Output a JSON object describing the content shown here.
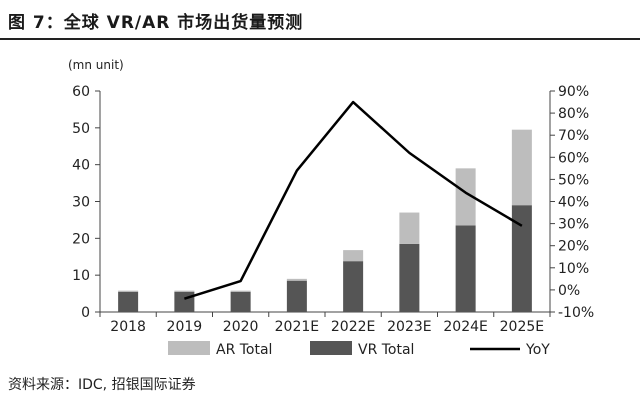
{
  "figure": {
    "title": "图 7：全球 VR/AR 市场出货量预测",
    "source": "资料来源：IDC, 招银国际证券"
  },
  "chart_data": {
    "type": "bar",
    "stacked": true,
    "unit_label": "(mn unit)",
    "categories": [
      "2018",
      "2019",
      "2020",
      "2021E",
      "2022E",
      "2023E",
      "2024E",
      "2025E"
    ],
    "series": [
      {
        "name": "VR Total",
        "type": "bar",
        "axis": "left",
        "color": "#555555",
        "values": [
          5.5,
          5.5,
          5.5,
          8.5,
          13.8,
          18.5,
          23.5,
          29
        ]
      },
      {
        "name": "AR Total",
        "type": "bar",
        "axis": "left",
        "color": "#bdbdbd",
        "values": [
          0.3,
          0.3,
          0.3,
          0.5,
          3,
          8.5,
          15.5,
          20.5
        ]
      },
      {
        "name": "YoY",
        "type": "line",
        "axis": "right",
        "color": "#000000",
        "values": [
          null,
          -4,
          4,
          54,
          85,
          62,
          44,
          29
        ]
      }
    ],
    "y_left": {
      "min": 0,
      "max": 60,
      "ticks": [
        0,
        10,
        20,
        30,
        40,
        50,
        60
      ]
    },
    "y_right": {
      "min": -10,
      "max": 90,
      "ticks": [
        "-10%",
        "0%",
        "10%",
        "20%",
        "30%",
        "40%",
        "50%",
        "60%",
        "70%",
        "80%",
        "90%"
      ]
    },
    "legend": [
      "AR Total",
      "VR Total",
      "YoY"
    ],
    "legend_position": "bottom",
    "grid": false
  }
}
